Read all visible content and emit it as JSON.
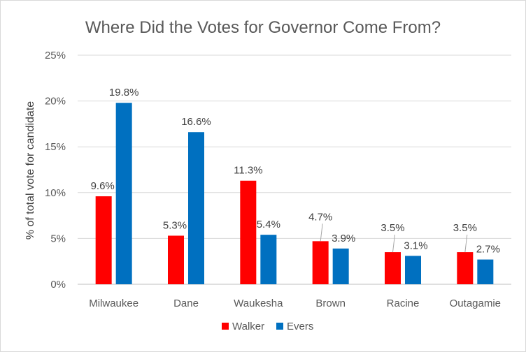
{
  "chart_data": {
    "type": "bar",
    "title": "Where Did the Votes for Governor Come From?",
    "xlabel": "",
    "ylabel": "% of total vote for candidate",
    "ylim": [
      0,
      25
    ],
    "yticks": [
      "0%",
      "5%",
      "10%",
      "15%",
      "20%",
      "25%"
    ],
    "categories": [
      "Milwaukee",
      "Dane",
      "Waukesha",
      "Brown",
      "Racine",
      "Outagamie"
    ],
    "series": [
      {
        "name": "Walker",
        "color": "#ff0000",
        "values": [
          9.6,
          5.3,
          11.3,
          4.7,
          3.5,
          3.5
        ],
        "labels": [
          "9.6%",
          "5.3%",
          "11.3%",
          "4.7%",
          "3.5%",
          "3.5%"
        ]
      },
      {
        "name": "Evers",
        "color": "#0070c0",
        "values": [
          19.8,
          16.6,
          5.4,
          3.9,
          3.1,
          2.7
        ],
        "labels": [
          "19.8%",
          "16.6%",
          "5.4%",
          "3.9%",
          "3.1%",
          "2.7%"
        ]
      }
    ],
    "grid": true,
    "legend": "bottom"
  }
}
